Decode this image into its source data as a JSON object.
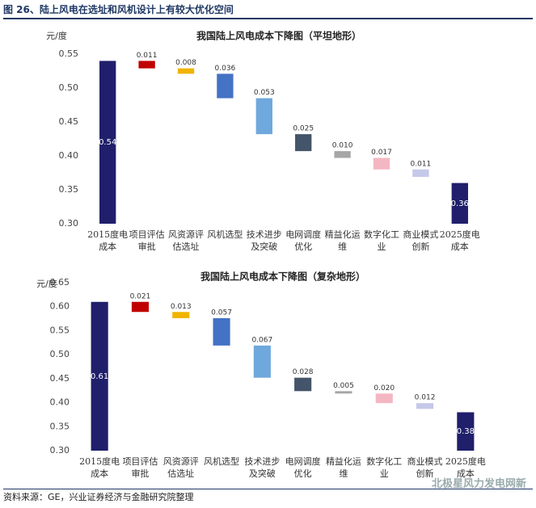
{
  "figure_title": "图 26、陆上风电在选址和风机设计上有较大优化空间",
  "source": "资料来源：GE，兴业证券经济与金融研究院整理",
  "watermark": "北极星风力发电网新",
  "chart_data": [
    {
      "type": "waterfall",
      "title": "我国陆上风电成本下降图（平坦地形）",
      "y_label": "元/度",
      "categories": [
        "2015度电成本",
        "项目评估审批",
        "风资源评估选址",
        "风机选型",
        "技术进步及突破",
        "电网调度优化",
        "精益化运维",
        "数字化工业",
        "商业模式创新",
        "2025度电成本"
      ],
      "values": [
        0.54,
        0.011,
        0.008,
        0.036,
        0.053,
        0.025,
        0.01,
        0.017,
        0.011,
        0.36
      ],
      "value_labels": [
        "0.54",
        "0.011",
        "0.008",
        "0.036",
        "0.053",
        "0.025",
        "0.010",
        "0.017",
        "0.011",
        "0.36"
      ],
      "colors": [
        "#1f1f6b",
        "#c00000",
        "#f0b400",
        "#4472c4",
        "#6fa8dc",
        "#44546a",
        "#a6a6a6",
        "#f4b6c2",
        "#c5c8e8",
        "#1f1f6b"
      ],
      "ylim": [
        0.3,
        0.55
      ],
      "yticks": [
        {
          "value": 0.3,
          "label": "0.30"
        },
        {
          "value": 0.35,
          "label": "0.35"
        },
        {
          "value": 0.4,
          "label": "0.40"
        },
        {
          "value": 0.45,
          "label": "0.45"
        },
        {
          "value": 0.5,
          "label": "0.50"
        },
        {
          "value": 0.55,
          "label": "0.55"
        }
      ]
    },
    {
      "type": "waterfall",
      "title": "我国陆上风电成本下降图（复杂地形）",
      "y_label": "元/度",
      "categories": [
        "2015度电成本",
        "项目评估审批",
        "风资源评估选址",
        "风机选型",
        "技术进步及突破",
        "电网调度优化",
        "精益化运维",
        "数字化工业",
        "商业模式创新",
        "2025度电成本"
      ],
      "values": [
        0.61,
        0.021,
        0.013,
        0.057,
        0.067,
        0.028,
        0.005,
        0.02,
        0.012,
        0.38
      ],
      "value_labels": [
        "0.61",
        "0.021",
        "0.013",
        "0.057",
        "0.067",
        "0.028",
        "0.005",
        "0.020",
        "0.012",
        "0.38"
      ],
      "colors": [
        "#1f1f6b",
        "#c00000",
        "#f0b400",
        "#4472c4",
        "#6fa8dc",
        "#44546a",
        "#a6a6a6",
        "#f4b6c2",
        "#c5c8e8",
        "#1f1f6b"
      ],
      "ylim": [
        0.3,
        0.65
      ],
      "yticks": [
        {
          "value": 0.3,
          "label": "0.30"
        },
        {
          "value": 0.35,
          "label": "0.35"
        },
        {
          "value": 0.4,
          "label": "0.40"
        },
        {
          "value": 0.45,
          "label": "0.45"
        },
        {
          "value": 0.5,
          "label": "0.50"
        },
        {
          "value": 0.55,
          "label": "0.55"
        },
        {
          "value": 0.6,
          "label": "0.60"
        },
        {
          "value": 0.65,
          "label": "0.65"
        }
      ]
    }
  ]
}
